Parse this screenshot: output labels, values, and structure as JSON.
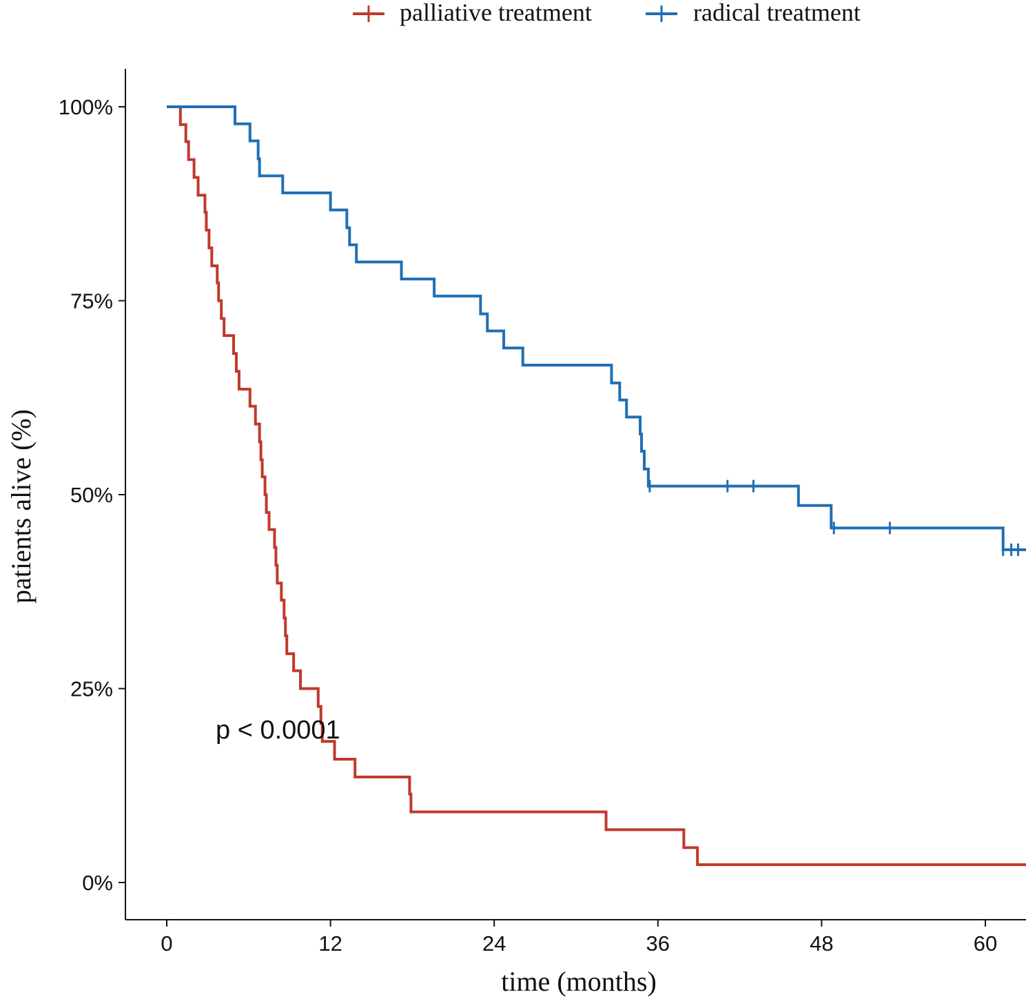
{
  "chart_data": {
    "type": "line",
    "subtype": "kaplan-meier step",
    "title": "",
    "xlabel": "time (months)",
    "ylabel": "patients alive (%)",
    "xlim": [
      0,
      63
    ],
    "ylim": [
      0,
      100
    ],
    "xticks": [
      0,
      12,
      24,
      36,
      48,
      60
    ],
    "xtick_labels": [
      "0",
      "12",
      "24",
      "36",
      "48",
      "60"
    ],
    "yticks": [
      0,
      25,
      50,
      75,
      100
    ],
    "ytick_labels": [
      "0%",
      "25%",
      "50%",
      "75%",
      "100%"
    ],
    "legend_position": "top",
    "grid": false,
    "annotation": "p < 0.0001",
    "series": [
      {
        "name": "palliative treatment",
        "color": "#c0392b",
        "steps": [
          [
            0,
            100
          ],
          [
            1.0,
            97.7
          ],
          [
            1.4,
            95.5
          ],
          [
            1.6,
            93.2
          ],
          [
            2.0,
            90.9
          ],
          [
            2.3,
            88.6
          ],
          [
            2.8,
            86.4
          ],
          [
            2.9,
            84.1
          ],
          [
            3.1,
            81.8
          ],
          [
            3.3,
            79.5
          ],
          [
            3.7,
            77.3
          ],
          [
            3.8,
            75.0
          ],
          [
            4.0,
            72.7
          ],
          [
            4.2,
            70.5
          ],
          [
            4.9,
            68.2
          ],
          [
            5.1,
            65.9
          ],
          [
            5.3,
            63.6
          ],
          [
            6.1,
            61.4
          ],
          [
            6.5,
            59.1
          ],
          [
            6.8,
            56.8
          ],
          [
            6.9,
            54.5
          ],
          [
            7.0,
            52.3
          ],
          [
            7.2,
            50.0
          ],
          [
            7.3,
            47.7
          ],
          [
            7.5,
            45.5
          ],
          [
            7.9,
            43.2
          ],
          [
            8.0,
            40.9
          ],
          [
            8.1,
            38.6
          ],
          [
            8.4,
            36.4
          ],
          [
            8.6,
            34.1
          ],
          [
            8.7,
            31.8
          ],
          [
            8.8,
            29.5
          ],
          [
            9.3,
            27.3
          ],
          [
            9.8,
            25.0
          ],
          [
            11.1,
            22.7
          ],
          [
            11.3,
            20.5
          ],
          [
            11.4,
            18.2
          ],
          [
            12.3,
            15.9
          ],
          [
            13.8,
            13.6
          ],
          [
            17.8,
            11.4
          ],
          [
            17.9,
            9.1
          ],
          [
            32.2,
            6.8
          ],
          [
            37.9,
            4.5
          ],
          [
            38.9,
            2.3
          ]
        ],
        "end": 63
      },
      {
        "name": "radical treatment",
        "color": "#1f6fb5",
        "steps": [
          [
            0,
            100
          ],
          [
            5.0,
            97.8
          ],
          [
            6.1,
            95.6
          ],
          [
            6.7,
            93.3
          ],
          [
            6.8,
            91.1
          ],
          [
            8.5,
            88.9
          ],
          [
            12.0,
            86.7
          ],
          [
            13.2,
            84.4
          ],
          [
            13.4,
            82.2
          ],
          [
            13.9,
            80.0
          ],
          [
            17.2,
            77.8
          ],
          [
            19.6,
            75.6
          ],
          [
            23.0,
            73.3
          ],
          [
            23.5,
            71.1
          ],
          [
            24.7,
            68.9
          ],
          [
            26.1,
            66.7
          ],
          [
            32.6,
            64.4
          ],
          [
            33.2,
            62.2
          ],
          [
            33.7,
            60.0
          ],
          [
            34.7,
            57.8
          ],
          [
            34.8,
            55.6
          ],
          [
            35.0,
            53.3
          ],
          [
            35.3,
            51.1
          ],
          [
            46.3,
            48.6
          ],
          [
            48.7,
            45.7
          ],
          [
            61.3,
            42.9
          ]
        ],
        "censored": [
          35.4,
          41.1,
          43.0,
          48.9,
          53.0,
          61.3,
          61.9,
          62.4
        ],
        "end": 63
      }
    ]
  }
}
